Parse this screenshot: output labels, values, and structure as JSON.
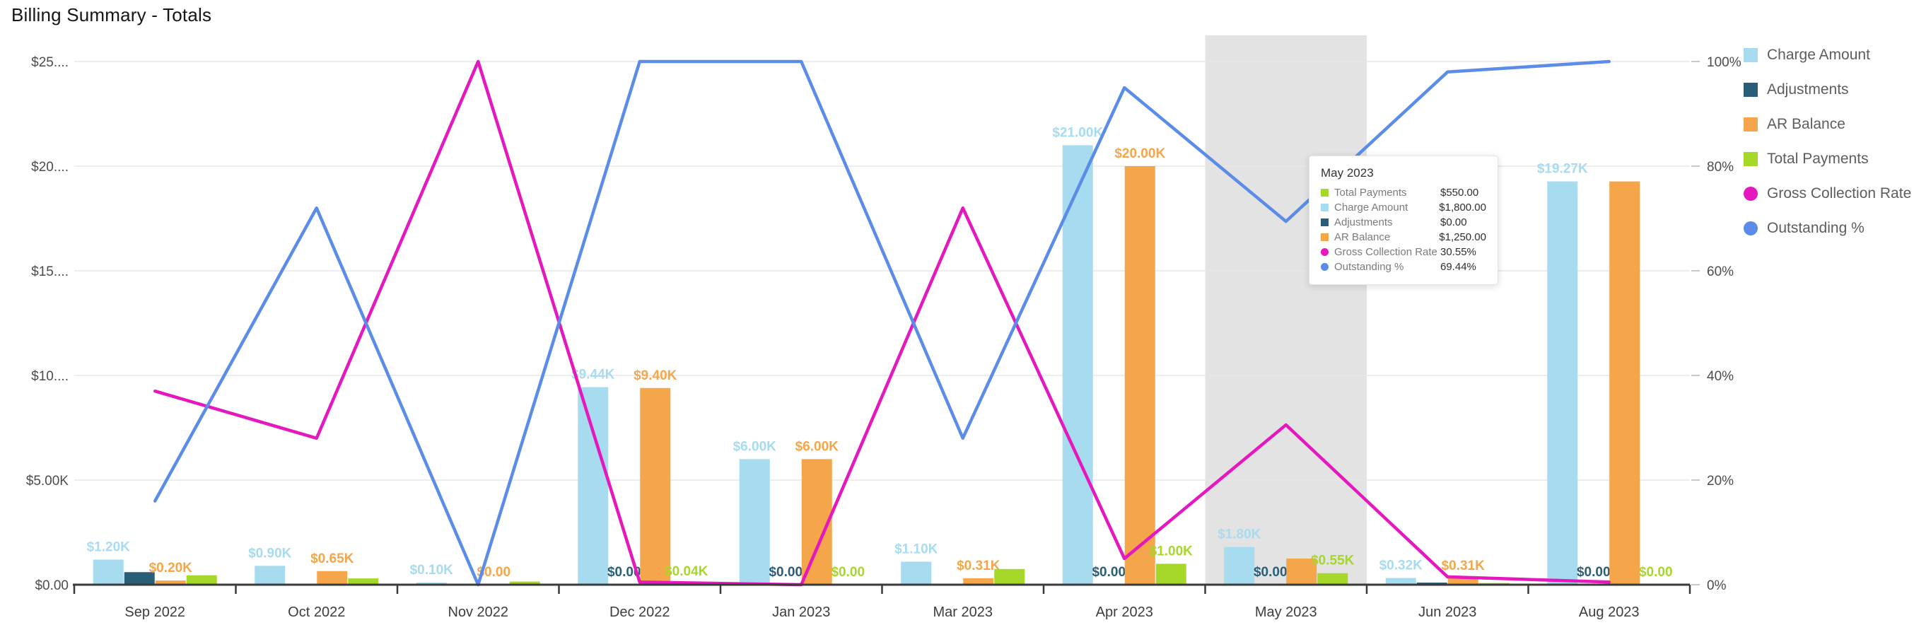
{
  "title": "Billing Summary - Totals",
  "chart_data": {
    "type": "combo-bar-line",
    "categories": [
      "Sep 2022",
      "Oct 2022",
      "Nov 2022",
      "Dec 2022",
      "Jan 2023",
      "Mar 2023",
      "Apr 2023",
      "May 2023",
      "Jun 2023",
      "Aug 2023"
    ],
    "left_axis": {
      "ticks": [
        "$0.00",
        "$5.00K",
        "$10....",
        "$15....",
        "$20....",
        "$25...."
      ],
      "values": [
        0,
        5000,
        10000,
        15000,
        20000,
        25000
      ],
      "max": 25000
    },
    "right_axis": {
      "ticks": [
        "0%",
        "20%",
        "40%",
        "60%",
        "80%",
        "100%"
      ],
      "values": [
        0,
        20,
        40,
        60,
        80,
        100
      ],
      "max": 100
    },
    "grid": "horizontal",
    "legend_position": "right",
    "highlighted_category": "May 2023",
    "bar_series": [
      {
        "name": "Charge Amount",
        "color": "#a7dbf0",
        "values": [
          1200,
          900,
          100,
          9440,
          6000,
          1100,
          21000,
          1800,
          320,
          19270
        ],
        "labels": [
          "$1.20K",
          "$0.90K",
          "$0.10K",
          "$9.44K",
          "$6.00K",
          "$1.10K",
          "$21.00K",
          "$1.80K",
          "$0.32K",
          "$19.27K"
        ]
      },
      {
        "name": "Adjustments",
        "color": "#2a5d77",
        "values": [
          600,
          0,
          0,
          0,
          0,
          0,
          0,
          0,
          100,
          0
        ],
        "labels": [
          null,
          null,
          null,
          "$0.00",
          "$0.00",
          null,
          "$0.00",
          "$0.00",
          null,
          "$0.00"
        ]
      },
      {
        "name": "AR Balance",
        "color": "#f5a54a",
        "values": [
          200,
          650,
          0,
          9400,
          6000,
          310,
          20000,
          1250,
          310,
          19270
        ],
        "labels": [
          "$0.20K",
          "$0.65K",
          "$0.00",
          "$9.40K",
          "$6.00K",
          "$0.31K",
          "$20.00K",
          null,
          "$0.31K",
          null
        ]
      },
      {
        "name": "Total Payments",
        "color": "#a6d829",
        "values": [
          450,
          300,
          150,
          40,
          0,
          750,
          1000,
          550,
          80,
          0
        ],
        "labels": [
          null,
          null,
          null,
          "$0.04K",
          "$0.00",
          null,
          "$1.00K",
          "$0.55K",
          null,
          "$0.00"
        ]
      }
    ],
    "line_series": [
      {
        "name": "Gross Collection Rate",
        "color": "#e518be",
        "axis": "right",
        "values": [
          37,
          28,
          100,
          0.5,
          0,
          72,
          5,
          30.55,
          1.5,
          0.5
        ]
      },
      {
        "name": "Outstanding %",
        "color": "#5b8de8",
        "axis": "right",
        "values": [
          16,
          72,
          0,
          100,
          100,
          28,
          95,
          69.44,
          98,
          100
        ]
      }
    ]
  },
  "legend": {
    "items": [
      {
        "label": "Charge Amount",
        "color": "#a7dbf0",
        "shape": "square"
      },
      {
        "label": "Adjustments",
        "color": "#2a5d77",
        "shape": "square"
      },
      {
        "label": "AR Balance",
        "color": "#f5a54a",
        "shape": "square"
      },
      {
        "label": "Total Payments",
        "color": "#a6d829",
        "shape": "square"
      },
      {
        "label": "Gross Collection Rate",
        "color": "#e518be",
        "shape": "circle"
      },
      {
        "label": "Outstanding %",
        "color": "#5b8de8",
        "shape": "circle"
      }
    ]
  },
  "tooltip": {
    "title": "May 2023",
    "rows": [
      {
        "label": "Total Payments",
        "value": "$550.00",
        "color": "#a6d829",
        "shape": "square"
      },
      {
        "label": "Charge Amount",
        "value": "$1,800.00",
        "color": "#a7dbf0",
        "shape": "square"
      },
      {
        "label": "Adjustments",
        "value": "$0.00",
        "color": "#2a5d77",
        "shape": "square"
      },
      {
        "label": "AR Balance",
        "value": "$1,250.00",
        "color": "#f5a54a",
        "shape": "square"
      },
      {
        "label": "Gross Collection Rate",
        "value": "30.55%",
        "color": "#e518be",
        "shape": "circle"
      },
      {
        "label": "Outstanding %",
        "value": "69.44%",
        "color": "#5b8de8",
        "shape": "circle"
      }
    ]
  },
  "colors": {
    "highlight_band": "#e3e3e3",
    "gridline": "#e7e7e7",
    "axis": "#3a3a3a"
  }
}
